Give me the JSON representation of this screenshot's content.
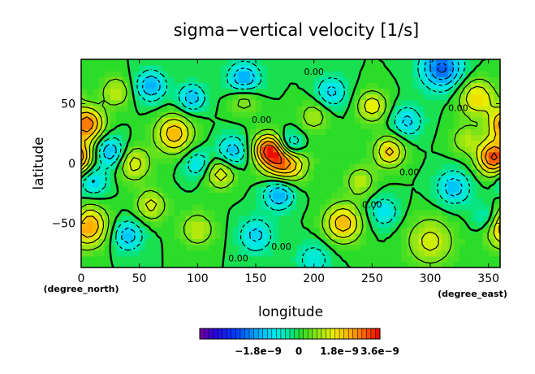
{
  "chart_data": {
    "type": "heatmap",
    "title": "sigma−vertical velocity [1/s]",
    "xlabel": "longitude",
    "ylabel": "latitude",
    "x_unit": "(degree_east)",
    "y_unit": "(degree_north)",
    "xlim": [
      0,
      360
    ],
    "ylim": [
      -87,
      87
    ],
    "x_ticks": [
      {
        "value": 0,
        "label": "0"
      },
      {
        "value": 50,
        "label": "50"
      },
      {
        "value": 100,
        "label": "100"
      },
      {
        "value": 150,
        "label": "150"
      },
      {
        "value": 200,
        "label": "200"
      },
      {
        "value": 250,
        "label": "250"
      },
      {
        "value": 300,
        "label": "300"
      },
      {
        "value": 350,
        "label": "350"
      }
    ],
    "y_ticks": [
      {
        "value": 50,
        "label": "50"
      },
      {
        "value": 0,
        "label": "0"
      },
      {
        "value": -50,
        "label": "−50"
      }
    ],
    "contour_labels": [
      {
        "lon": 200,
        "lat": 74,
        "text": "0.00"
      },
      {
        "lon": 155,
        "lat": 34,
        "text": "0.00"
      },
      {
        "lon": 324,
        "lat": 44,
        "text": "0.00"
      },
      {
        "lon": 282,
        "lat": -10,
        "text": "0.00"
      },
      {
        "lon": 250,
        "lat": -37,
        "text": "0.00"
      },
      {
        "lon": 172,
        "lat": -72,
        "text": "0.00"
      },
      {
        "lon": 135,
        "lat": -82,
        "text": "0.00"
      }
    ],
    "colorbar": {
      "min": -4.4e-09,
      "max": 3.6e-09,
      "step": 2e-10,
      "tick_values": [
        -1.8e-09,
        0,
        1.8e-09,
        3.6e-09
      ],
      "tick_labels": [
        "−1.8e−9",
        "0",
        "1.8e−9",
        "3.6e−9"
      ]
    },
    "features": [
      {
        "lon": 5,
        "lat": 33,
        "v": 2.8e-09,
        "r": 10
      },
      {
        "lon": 5,
        "lat": -52,
        "v": 2.6e-09,
        "r": 12
      },
      {
        "lon": 355,
        "lat": 5,
        "v": 3.2e-09,
        "r": 10
      },
      {
        "lon": 175,
        "lat": 2,
        "v": 3e-09,
        "r": 12
      },
      {
        "lon": 160,
        "lat": 12,
        "v": 2.6e-09,
        "r": 9
      },
      {
        "lon": 80,
        "lat": 25,
        "v": 2.2e-09,
        "r": 11
      },
      {
        "lon": 265,
        "lat": 10,
        "v": 2e-09,
        "r": 9
      },
      {
        "lon": 225,
        "lat": -50,
        "v": 2.2e-09,
        "r": 11
      },
      {
        "lon": 340,
        "lat": 55,
        "v": 1.8e-09,
        "r": 11
      },
      {
        "lon": 250,
        "lat": 48,
        "v": 1.6e-09,
        "r": 9
      },
      {
        "lon": 120,
        "lat": -8,
        "v": 1.6e-09,
        "r": 9
      },
      {
        "lon": 45,
        "lat": 0,
        "v": 1.5e-09,
        "r": 10
      },
      {
        "lon": 300,
        "lat": -65,
        "v": 1.4e-09,
        "r": 14
      },
      {
        "lon": 30,
        "lat": 60,
        "v": 1.2e-09,
        "r": 9
      },
      {
        "lon": 60,
        "lat": -35,
        "v": 1.4e-09,
        "r": 9
      },
      {
        "lon": 140,
        "lat": 55,
        "v": 1.2e-09,
        "r": 9
      },
      {
        "lon": 200,
        "lat": 40,
        "v": 1e-09,
        "r": 9
      },
      {
        "lon": 330,
        "lat": 20,
        "v": 1e-09,
        "r": 9
      },
      {
        "lon": 100,
        "lat": -55,
        "v": 1.2e-09,
        "r": 10
      },
      {
        "lon": 240,
        "lat": -15,
        "v": 1.1e-09,
        "r": 9
      },
      {
        "lon": 310,
        "lat": 80,
        "v": -2.6e-09,
        "r": 12
      },
      {
        "lon": 140,
        "lat": 70,
        "v": -2e-09,
        "r": 10
      },
      {
        "lon": 60,
        "lat": 65,
        "v": -1.8e-09,
        "r": 9
      },
      {
        "lon": 180,
        "lat": 15,
        "v": -2.2e-09,
        "r": 8
      },
      {
        "lon": 25,
        "lat": 10,
        "v": -1.8e-09,
        "r": 9
      },
      {
        "lon": 130,
        "lat": 10,
        "v": -1.6e-09,
        "r": 9
      },
      {
        "lon": 170,
        "lat": -25,
        "v": -2e-09,
        "r": 9
      },
      {
        "lon": 95,
        "lat": 55,
        "v": -1.6e-09,
        "r": 8
      },
      {
        "lon": 40,
        "lat": -60,
        "v": -1.6e-09,
        "r": 9
      },
      {
        "lon": 215,
        "lat": 60,
        "v": -1.4e-09,
        "r": 9
      },
      {
        "lon": 280,
        "lat": 35,
        "v": -1.4e-09,
        "r": 9
      },
      {
        "lon": 320,
        "lat": -20,
        "v": -1.6e-09,
        "r": 10
      },
      {
        "lon": 260,
        "lat": -40,
        "v": -1.2e-09,
        "r": 9
      },
      {
        "lon": 150,
        "lat": -60,
        "v": -1.4e-09,
        "r": 10
      },
      {
        "lon": 100,
        "lat": 0,
        "v": -1.2e-09,
        "r": 8
      },
      {
        "lon": 10,
        "lat": -15,
        "v": -1.4e-09,
        "r": 9
      },
      {
        "lon": 350,
        "lat": -45,
        "v": -1.2e-09,
        "r": 9
      },
      {
        "lon": 200,
        "lat": -80,
        "v": -1e-09,
        "r": 10
      }
    ]
  }
}
